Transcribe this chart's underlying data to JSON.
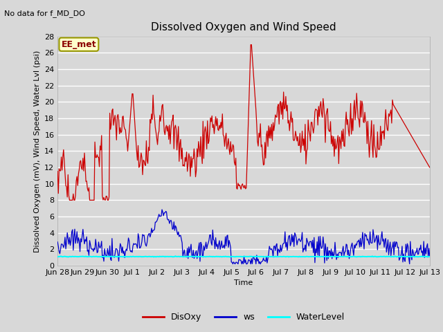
{
  "title": "Dissolved Oxygen and Wind Speed",
  "ylabel": "Dissolved Oxygen (mV), Wind Speed, Water Lvl (psi)",
  "xlabel": "Time",
  "annotation_text": "No data for f_MD_DO",
  "box_label": "EE_met",
  "ylim": [
    0,
    28
  ],
  "yticks": [
    0,
    2,
    4,
    6,
    8,
    10,
    12,
    14,
    16,
    18,
    20,
    22,
    24,
    26,
    28
  ],
  "xtick_labels": [
    "Jun 28",
    "Jun 29",
    "Jun 30",
    "Jul 1",
    "Jul 2",
    "Jul 3",
    "Jul 4",
    "Jul 5",
    "Jul 6",
    "Jul 7",
    "Jul 8",
    "Jul 9",
    "Jul 10",
    "Jul 11",
    "Jul 12",
    "Jul 13"
  ],
  "bg_color": "#d8d8d8",
  "plot_bg_color": "#d8d8d8",
  "grid_color": "white",
  "disoxy_color": "#cc0000",
  "ws_color": "#0000cc",
  "waterlevel_color": "cyan",
  "legend_labels": [
    "DisOxy",
    "ws",
    "WaterLevel"
  ],
  "title_fontsize": 11,
  "axis_fontsize": 8,
  "tick_fontsize": 8
}
